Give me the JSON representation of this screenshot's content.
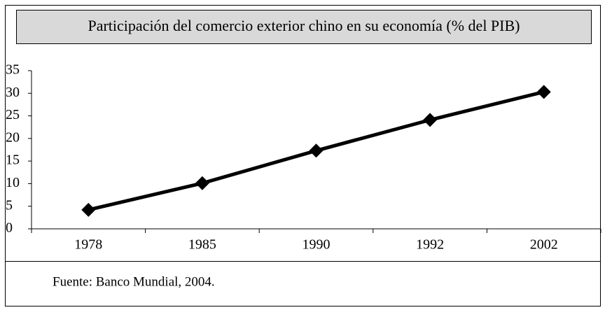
{
  "chart_data": {
    "type": "line",
    "title": "Participación del comercio exterior chino en su economía (% del PIB)",
    "source": "Fuente: Banco Mundial, 2004.",
    "categories": [
      "1978",
      "1985",
      "1990",
      "1992",
      "2002"
    ],
    "values": [
      4.2,
      10.1,
      17.3,
      24.1,
      30.3
    ],
    "color": "#000000",
    "ylim": [
      0,
      35
    ],
    "yticks": [
      0,
      5,
      10,
      15,
      20,
      25,
      30,
      35
    ],
    "grid": false
  }
}
